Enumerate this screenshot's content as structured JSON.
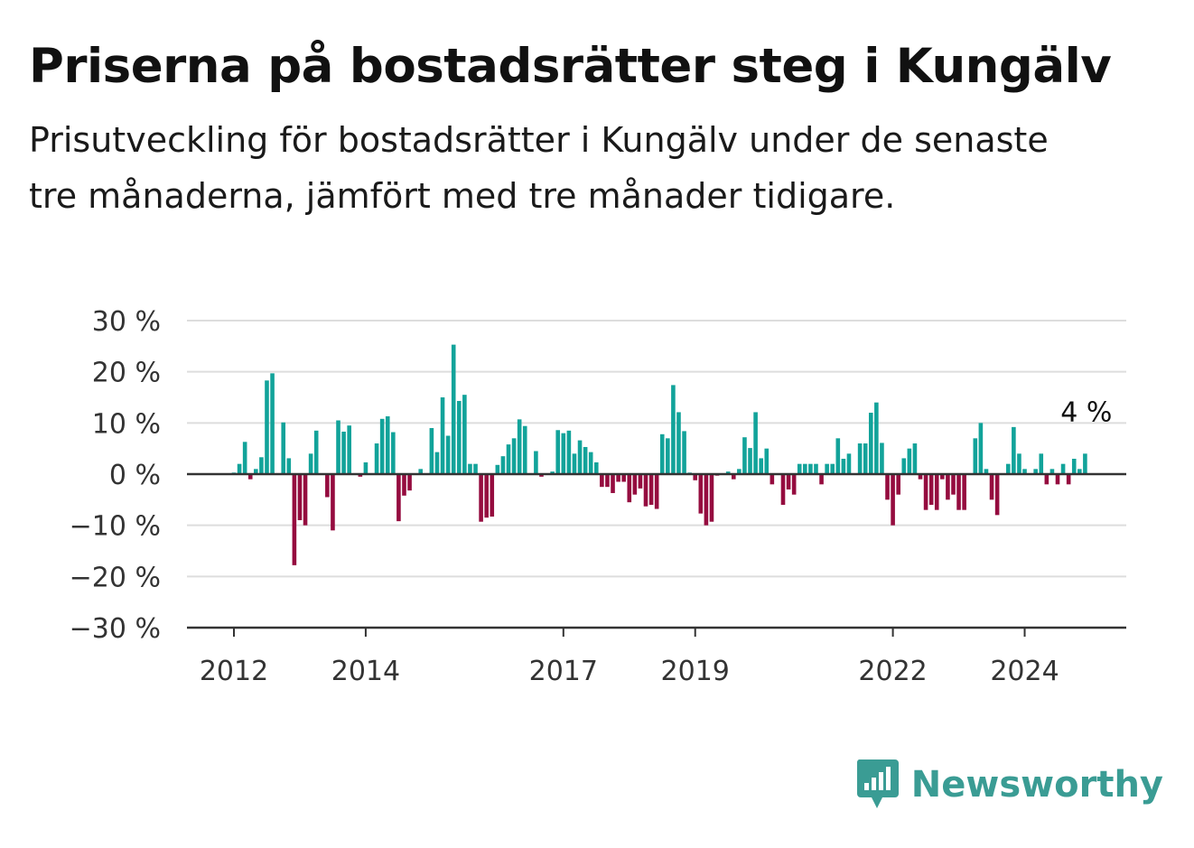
{
  "title": "Priserna på bostadsrätter steg i Kungälv",
  "subtitle": "Prisutveckling för bostadsrätter i Kungälv under de senaste tre månaderna, jämfört med tre månader tidigare.",
  "brand": {
    "name": "Newsworthy",
    "color": "#3a9c94"
  },
  "colors": {
    "positive": "#12a39a",
    "negative": "#950c3f",
    "grid": "#dddddd",
    "axis": "#333333"
  },
  "chart_data": {
    "type": "bar",
    "title": "Priserna på bostadsrätter steg i Kungälv",
    "xlabel": "",
    "ylabel": "",
    "y_unit": "%",
    "ylim": [
      -30,
      30
    ],
    "y_ticks": [
      30,
      20,
      10,
      0,
      -10,
      -20,
      -30
    ],
    "y_tick_labels": [
      "30 %",
      "20 %",
      "10 %",
      "0 %",
      "−10 %",
      "−20 %",
      "−30 %"
    ],
    "x_ticks": [
      2012,
      2014,
      2017,
      2019,
      2022,
      2024
    ],
    "x_tick_labels": [
      "2012",
      "2014",
      "2017",
      "2019",
      "2022",
      "2024"
    ],
    "x_start": "2012-01",
    "frequency": "monthly",
    "last_value_label": "4 %",
    "grid": true,
    "values": [
      0.3,
      2,
      6.3,
      -1,
      1,
      3.3,
      18.3,
      19.7,
      0,
      10.1,
      3.1,
      -17.8,
      -9,
      -10,
      4,
      8.5,
      0,
      -4.5,
      -11,
      10.5,
      8.3,
      9.5,
      0,
      -0.5,
      2.3,
      0,
      6,
      10.8,
      11.3,
      8.2,
      -9.2,
      -4.2,
      -3.2,
      0,
      1,
      0,
      9,
      4.3,
      15,
      7.5,
      25.3,
      14.3,
      15.5,
      2,
      2,
      -9.3,
      -8.5,
      -8.3,
      1.8,
      3.5,
      5.8,
      7,
      10.7,
      9.4,
      0,
      4.5,
      -0.5,
      0,
      0.5,
      8.6,
      8,
      8.5,
      4,
      6.6,
      5.3,
      4.3,
      2.3,
      -2.5,
      -2.5,
      -3.7,
      -1.5,
      -1.5,
      -5.5,
      -4,
      -2.8,
      -6.3,
      -6,
      -6.8,
      7.8,
      7,
      17.4,
      12.1,
      8.4,
      0.3,
      -1.2,
      -7.7,
      -10,
      -9.3,
      -0.3,
      0,
      0.5,
      -1,
      1,
      7.2,
      5.1,
      12.1,
      3.1,
      5,
      -2,
      0,
      -6,
      -3,
      -4,
      2,
      2,
      2,
      2,
      -2,
      2,
      2,
      7,
      3,
      4,
      0,
      6,
      6,
      12,
      14,
      6.1,
      -5,
      -10,
      -4,
      3.1,
      5,
      6,
      -1,
      -7,
      -6,
      -7,
      -1,
      -5,
      -4,
      -7,
      -7,
      0,
      7,
      10,
      1,
      -5,
      -8,
      0,
      2,
      9.2,
      4,
      1,
      0,
      1,
      4,
      -2,
      1,
      -2,
      2,
      -2,
      3,
      1,
      4
    ]
  }
}
